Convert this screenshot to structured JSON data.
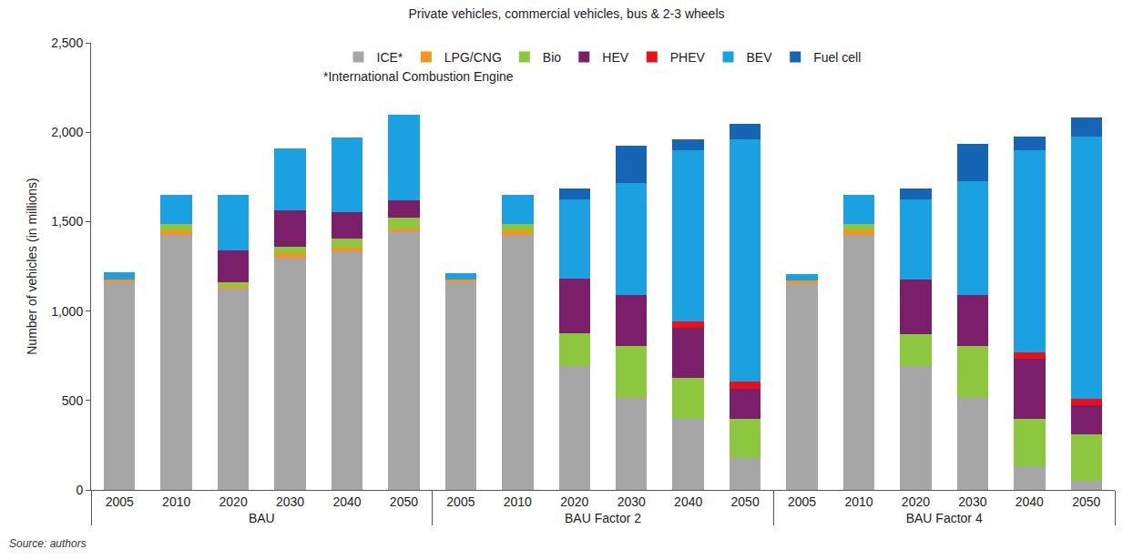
{
  "chart_data": {
    "type": "bar",
    "title": "Private vehicles, commercial vehicles, bus & 2-3 wheels",
    "y_label": "Number of vehicles (in millions)",
    "annotations": [
      "*International Combustion Engine",
      "Source: authors"
    ],
    "groups": [
      "BAU",
      "BAU",
      "BAU",
      "BAU",
      "BAU",
      "BAU",
      "BAU Factor 2",
      "BAU Factor 2",
      "BAU Factor 2",
      "BAU Factor 2",
      "BAU Factor 2",
      "BAU Factor 2",
      "BAU Factor 4",
      "BAU Factor 4",
      "BAU Factor 4",
      "BAU Factor 4",
      "BAU Factor 4",
      "BAU Factor 4"
    ],
    "categories": [
      "2005",
      "2010",
      "2020",
      "2030",
      "2040",
      "2050",
      "2005",
      "2010",
      "2020",
      "2030",
      "2040",
      "2050",
      "2005",
      "2010",
      "2020",
      "2030",
      "2040",
      "2050"
    ],
    "series": [
      {
        "name": "ICE*",
        "color": "#a6a6a6",
        "values": [
          1160,
          1425,
          1125,
          1300,
          1335,
          1445,
          1160,
          1425,
          690,
          515,
          395,
          180,
          1155,
          1425,
          690,
          515,
          130,
          50
        ]
      },
      {
        "name": "LPG/CNG",
        "color": "#f7941d",
        "values": [
          15,
          25,
          10,
          25,
          20,
          15,
          15,
          25,
          0,
          0,
          0,
          0,
          15,
          25,
          0,
          0,
          0,
          0
        ]
      },
      {
        "name": "Bio",
        "color": "#8dc63f",
        "values": [
          0,
          35,
          25,
          35,
          50,
          60,
          0,
          35,
          185,
          290,
          230,
          215,
          0,
          35,
          180,
          290,
          265,
          260
        ]
      },
      {
        "name": "HEV",
        "color": "#7b1f6a",
        "values": [
          0,
          0,
          180,
          205,
          150,
          100,
          0,
          0,
          305,
          285,
          280,
          170,
          0,
          0,
          305,
          285,
          340,
          165
        ]
      },
      {
        "name": "PHEV",
        "color": "#e8101a",
        "values": [
          0,
          0,
          0,
          0,
          0,
          0,
          0,
          0,
          0,
          0,
          35,
          40,
          0,
          0,
          0,
          0,
          35,
          35
        ]
      },
      {
        "name": "BEV",
        "color": "#1ba1e2",
        "values": [
          40,
          165,
          310,
          345,
          415,
          480,
          35,
          165,
          445,
          625,
          960,
          1355,
          35,
          165,
          450,
          635,
          1130,
          1465
        ]
      },
      {
        "name": "Fuel cell",
        "color": "#1565b4",
        "values": [
          0,
          0,
          0,
          0,
          0,
          0,
          0,
          0,
          60,
          210,
          60,
          85,
          0,
          0,
          60,
          210,
          75,
          105
        ]
      }
    ],
    "ylim": [
      0,
      2500
    ],
    "yticks": [
      0,
      500,
      {
        "value": 1000,
        "label": "1,000"
      },
      {
        "value": 1500,
        "label": "1,500"
      },
      {
        "value": 2000,
        "label": "2,000"
      },
      {
        "value": 2500,
        "label": "2,500"
      }
    ],
    "stacked": true,
    "grid": false,
    "legend": "top"
  }
}
